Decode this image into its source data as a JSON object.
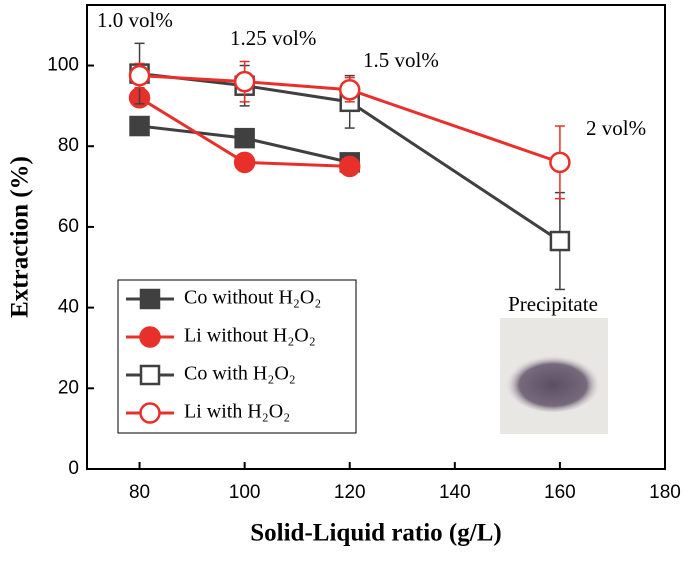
{
  "chart_data": {
    "type": "line",
    "x_label": "Solid-Liquid ratio (g/L)",
    "y_label": "Extraction (%)",
    "xlim": [
      70,
      180
    ],
    "xticks": [
      80,
      100,
      120,
      140,
      160,
      180
    ],
    "ylim": [
      0,
      115
    ],
    "yticks": [
      0,
      20,
      40,
      60,
      80,
      100
    ],
    "legend": "lower-left",
    "series": [
      {
        "name": "Co without H₂O₂",
        "color": "#404040",
        "marker": "square",
        "filled": true,
        "x": [
          80,
          100,
          120
        ],
        "values": [
          85,
          82,
          76
        ],
        "errors": [
          null,
          null,
          null
        ]
      },
      {
        "name": "Li without H₂O₂",
        "color": "#e8302a",
        "marker": "circle",
        "filled": true,
        "x": [
          80,
          100,
          120
        ],
        "values": [
          92,
          76,
          75
        ],
        "errors": [
          null,
          null,
          null
        ]
      },
      {
        "name": "Co with H₂O₂",
        "color": "#404040",
        "marker": "square",
        "filled": false,
        "x": [
          80,
          100,
          120,
          160
        ],
        "values": [
          98,
          95,
          91,
          56.5
        ],
        "errors": [
          7.5,
          5,
          6.5,
          12
        ]
      },
      {
        "name": "Li with H₂O₂",
        "color": "#e8302a",
        "marker": "circle",
        "filled": false,
        "x": [
          80,
          100,
          120,
          160
        ],
        "values": [
          97.5,
          96,
          94,
          76
        ],
        "errors": [
          3,
          5,
          3,
          9
        ]
      }
    ],
    "annotations": [
      "1.0 vol%",
      "1.25 vol%",
      "1.5 vol%",
      "2 vol%",
      "Precipitate"
    ]
  }
}
